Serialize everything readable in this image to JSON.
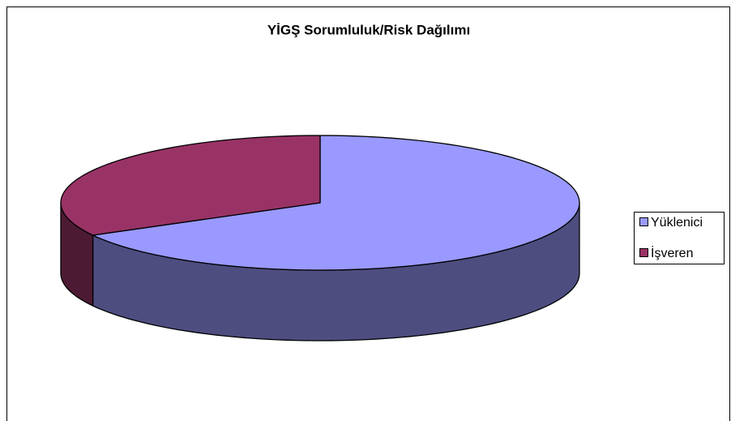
{
  "chart_data": {
    "type": "pie3d",
    "title": "YİGŞ Sorumluluk/Risk Dağılımı",
    "categories": [
      "Yüklenici",
      "İşveren"
    ],
    "values": [
      67,
      33
    ],
    "colors": [
      "#9999ff",
      "#993366"
    ],
    "side_colors": [
      "#4d4d80",
      "#4d1a33"
    ],
    "legend": "right"
  }
}
